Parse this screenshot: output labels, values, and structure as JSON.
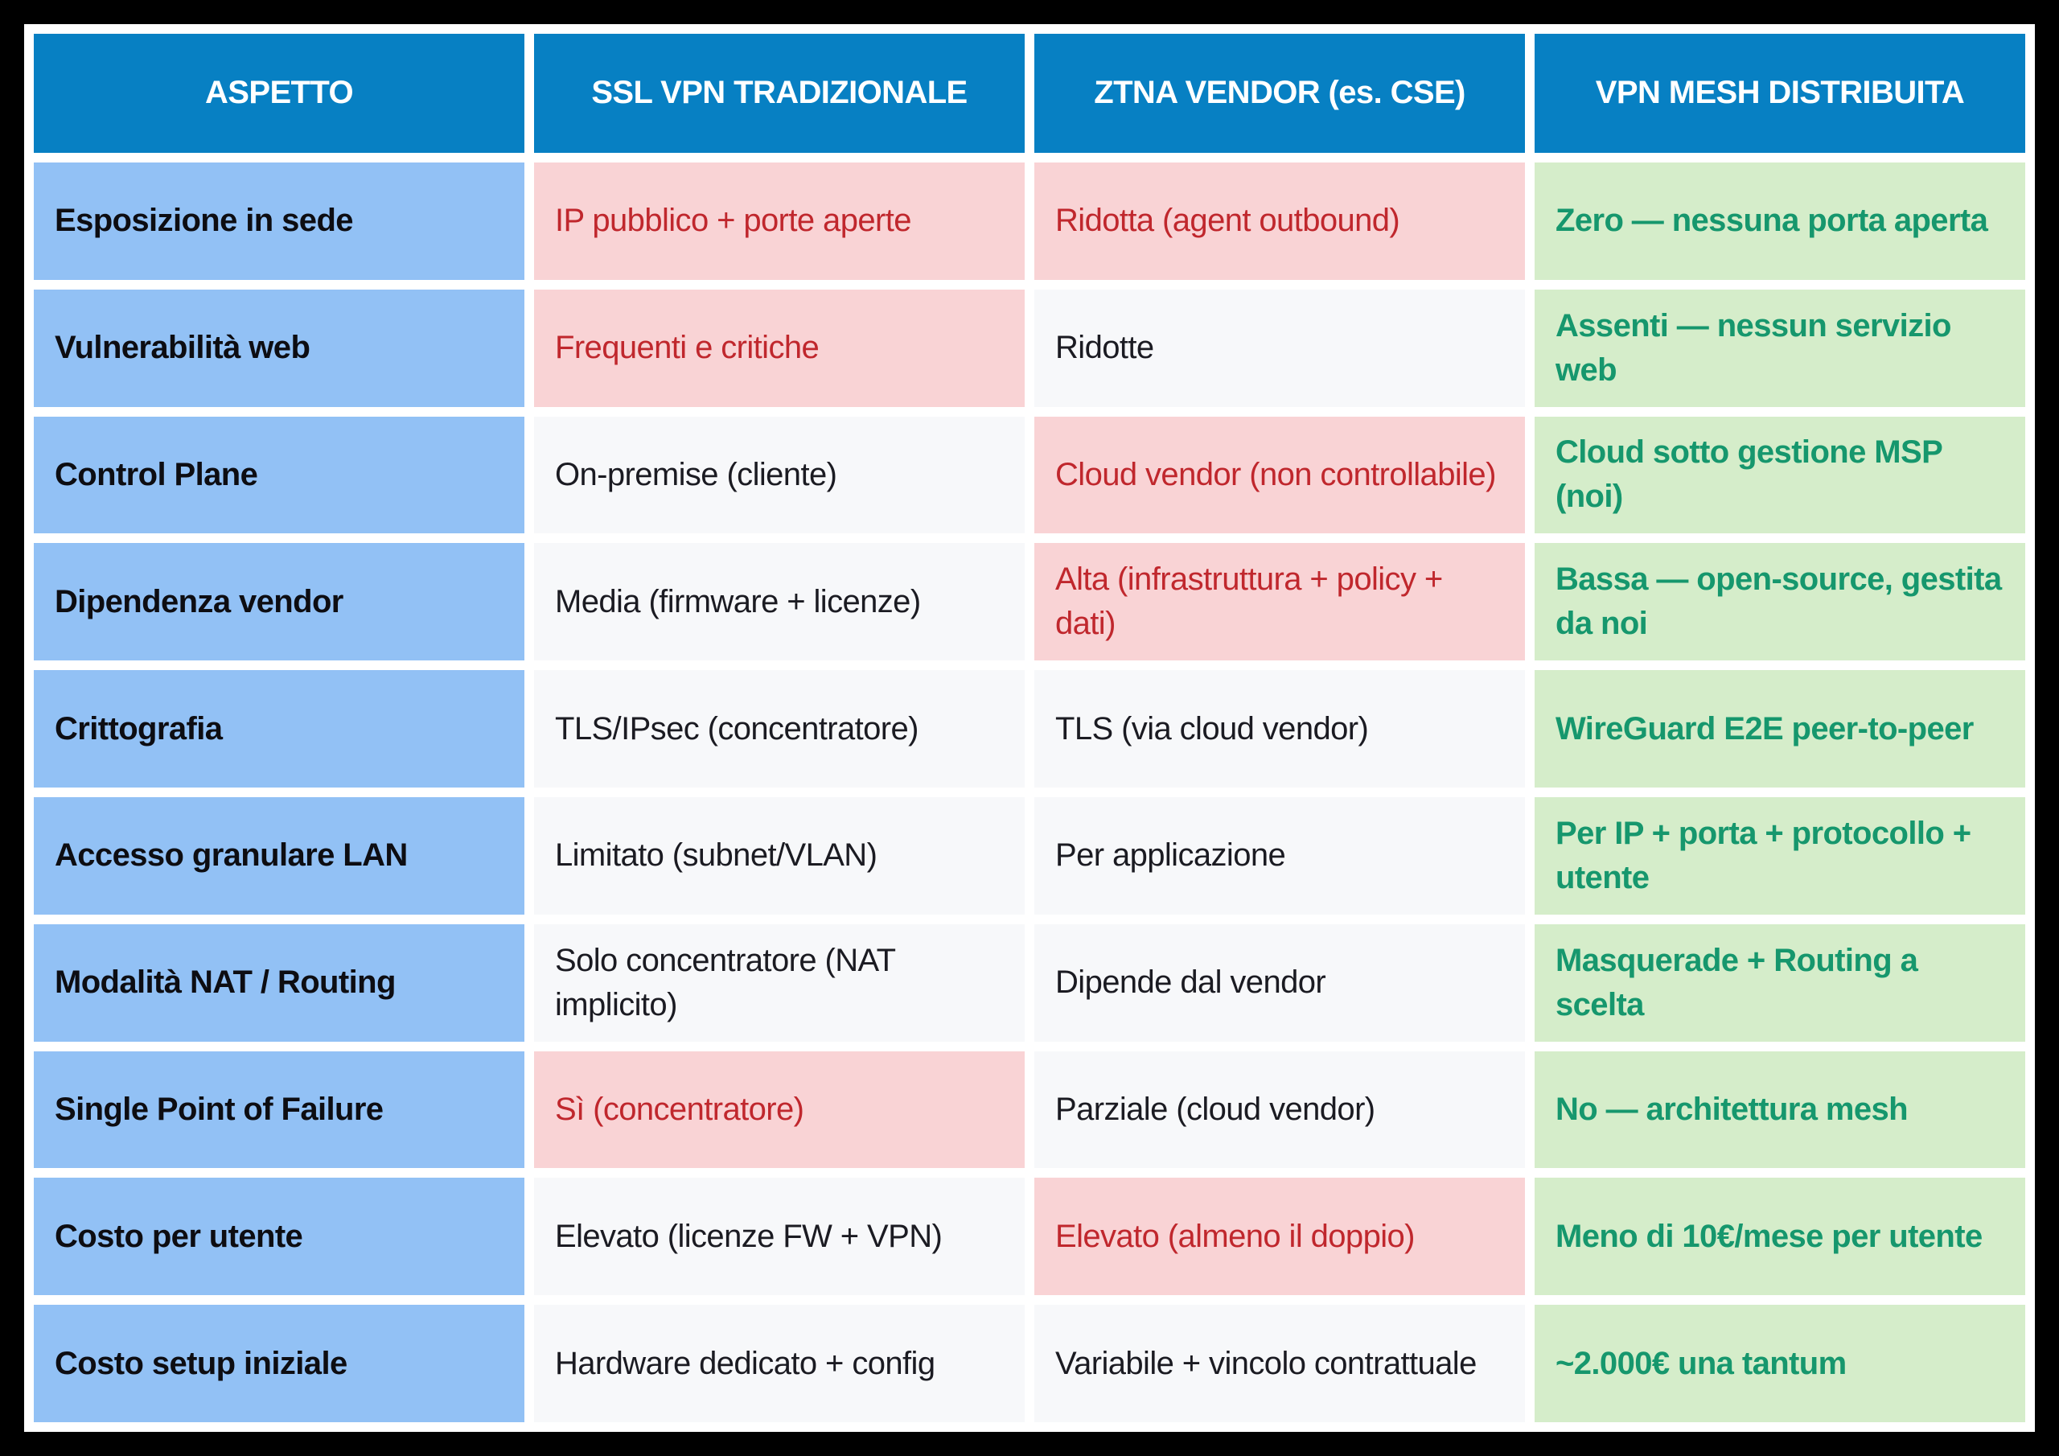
{
  "table": {
    "columns": [
      "ASPETTO",
      "SSL VPN TRADIZIONALE",
      "ZTNA VENDOR (es. CSE)",
      "VPN MESH DISTRIBUITA"
    ],
    "rows": [
      {
        "aspect": "Esposizione in sede",
        "cells": [
          {
            "text": "IP pubblico + porte aperte",
            "tone": "bad"
          },
          {
            "text": "Ridotta (agent outbound)",
            "tone": "bad"
          },
          {
            "text": "Zero — nessuna porta aperta",
            "tone": "good"
          }
        ]
      },
      {
        "aspect": "Vulnerabilità web",
        "cells": [
          {
            "text": "Frequenti e critiche",
            "tone": "bad"
          },
          {
            "text": "Ridotte",
            "tone": "neutral"
          },
          {
            "text": "Assenti — nessun servizio web",
            "tone": "good"
          }
        ]
      },
      {
        "aspect": "Control Plane",
        "cells": [
          {
            "text": "On-premise (cliente)",
            "tone": "neutral"
          },
          {
            "text": "Cloud vendor (non controllabile)",
            "tone": "bad"
          },
          {
            "text": "Cloud sotto gestione MSP (noi)",
            "tone": "good"
          }
        ]
      },
      {
        "aspect": "Dipendenza vendor",
        "cells": [
          {
            "text": "Media (firmware + licenze)",
            "tone": "neutral"
          },
          {
            "text": "Alta (infrastruttura + policy + dati)",
            "tone": "bad"
          },
          {
            "text": "Bassa — open-source, gestita da noi",
            "tone": "good"
          }
        ]
      },
      {
        "aspect": "Crittografia",
        "cells": [
          {
            "text": "TLS/IPsec (concentratore)",
            "tone": "neutral"
          },
          {
            "text": "TLS (via cloud vendor)",
            "tone": "neutral"
          },
          {
            "text": "WireGuard E2E peer-to-peer",
            "tone": "good"
          }
        ]
      },
      {
        "aspect": "Accesso granulare LAN",
        "cells": [
          {
            "text": "Limitato (subnet/VLAN)",
            "tone": "neutral"
          },
          {
            "text": "Per applicazione",
            "tone": "neutral"
          },
          {
            "text": "Per IP + porta + protocollo + utente",
            "tone": "good"
          }
        ]
      },
      {
        "aspect": "Modalità NAT / Routing",
        "cells": [
          {
            "text": "Solo concentratore (NAT implicito)",
            "tone": "neutral"
          },
          {
            "text": "Dipende dal vendor",
            "tone": "neutral"
          },
          {
            "text": "Masquerade + Routing a scelta",
            "tone": "good"
          }
        ]
      },
      {
        "aspect": "Single Point of Failure",
        "cells": [
          {
            "text": "Sì (concentratore)",
            "tone": "bad"
          },
          {
            "text": "Parziale (cloud vendor)",
            "tone": "neutral"
          },
          {
            "text": "No — architettura mesh",
            "tone": "good"
          }
        ]
      },
      {
        "aspect": "Costo per utente",
        "cells": [
          {
            "text": "Elevato (licenze FW + VPN)",
            "tone": "neutral"
          },
          {
            "text": "Elevato (almeno il doppio)",
            "tone": "bad"
          },
          {
            "text": "Meno di 10€/mese per utente",
            "tone": "good"
          }
        ]
      },
      {
        "aspect": "Costo setup iniziale",
        "cells": [
          {
            "text": "Hardware dedicato + config",
            "tone": "neutral"
          },
          {
            "text": "Variabile + vincolo contrattuale",
            "tone": "neutral"
          },
          {
            "text": "~2.000€ una tantum",
            "tone": "good"
          }
        ]
      }
    ]
  },
  "colors": {
    "header_bg": "#0780c3",
    "header_text": "#ffffff",
    "aspect_bg": "#92c1f5",
    "bad_bg": "#f9d3d5",
    "bad_text": "#c0272d",
    "neutral_bg": "#f7f8fa",
    "neutral_text": "#1b1b22",
    "good_bg": "#d5edca",
    "good_text": "#16976d",
    "page_bg": "#000000",
    "gutter": "#ffffff"
  }
}
